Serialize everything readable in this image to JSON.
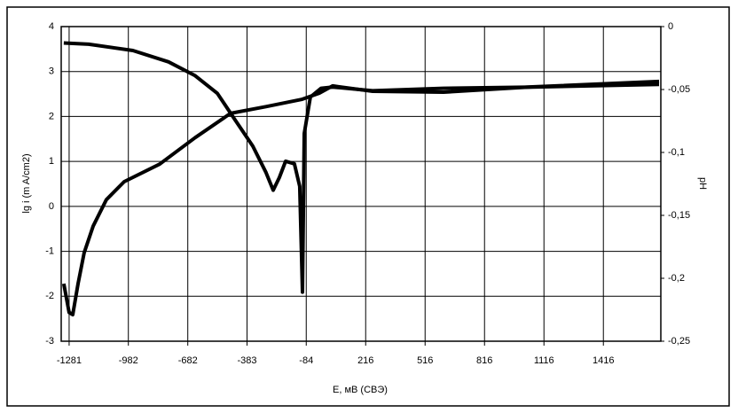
{
  "chart_data": {
    "type": "line",
    "x_label": "E, мВ (СВЭ)",
    "y_label": "lg i (m A/cm2)",
    "y2_label": "pH",
    "xlim": [
      -1321,
      1706
    ],
    "xticks": [
      -1281,
      -982,
      -682,
      -383,
      -84,
      216,
      516,
      816,
      1116,
      1416
    ],
    "ylim": [
      -3,
      4
    ],
    "yticks": [
      -3,
      -2,
      -1,
      0,
      1,
      2,
      3,
      4
    ],
    "y2lim": [
      -0.25,
      0
    ],
    "y2ticks": [
      {
        "value": -0.25,
        "label": "-0,25"
      },
      {
        "value": -0.2,
        "label": "-0,2"
      },
      {
        "value": -0.15,
        "label": "-0,15"
      },
      {
        "value": -0.1,
        "label": "-0,1"
      },
      {
        "value": -0.05,
        "label": "-0,05"
      },
      0
    ],
    "grid": true,
    "series": [
      {
        "color": "#000000",
        "axis": "y",
        "x": [
          -1308,
          -1281,
          -1263,
          -1236,
          -1205,
          -1160,
          -1093,
          -1003,
          -824,
          -645,
          -466,
          -287,
          -108,
          -18,
          49,
          251,
          609,
          1057,
          1697
        ],
        "values": [
          -1.72,
          -2.36,
          -2.41,
          -1.72,
          -1.03,
          -0.44,
          0.15,
          0.55,
          0.94,
          1.53,
          2.07,
          2.22,
          2.38,
          2.52,
          2.68,
          2.56,
          2.54,
          2.66,
          2.78
        ]
      },
      {
        "color": "#000000",
        "axis": "y2",
        "x": [
          -1308,
          -1182,
          -959,
          -779,
          -645,
          -533,
          -444,
          -354,
          -287,
          -251,
          -220,
          -188,
          -144,
          -117,
          -103,
          -94,
          -63,
          -9,
          49,
          251,
          609,
          1057,
          1697
        ],
        "values": [
          -0.013,
          -0.014,
          -0.019,
          -0.028,
          -0.039,
          -0.053,
          -0.074,
          -0.095,
          -0.116,
          -0.13,
          -0.12,
          -0.107,
          -0.109,
          -0.127,
          -0.211,
          -0.085,
          -0.056,
          -0.049,
          -0.048,
          -0.051,
          -0.049,
          -0.048,
          -0.046
        ]
      }
    ]
  }
}
